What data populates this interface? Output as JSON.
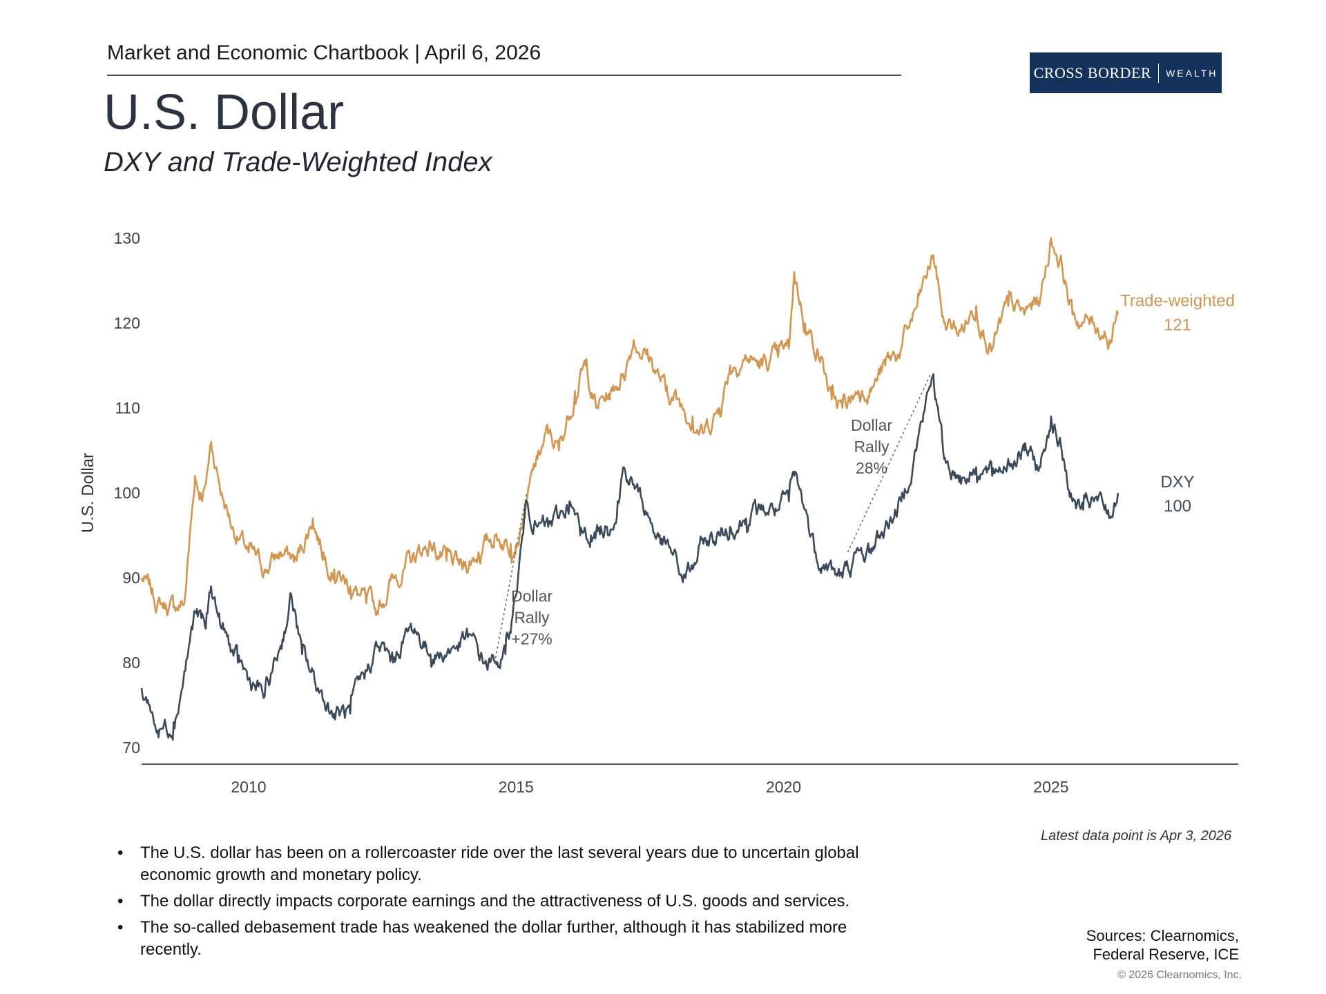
{
  "header": {
    "chartbook": "Market and Economic Chartbook | April 6, 2026",
    "logo_main": "CROSS BORDER",
    "logo_sub": "WEALTH",
    "title": "U.S. Dollar",
    "subtitle": "DXY and Trade-Weighted Index"
  },
  "chart_data": {
    "type": "line",
    "title": "U.S. Dollar",
    "subtitle": "DXY and Trade-Weighted Index",
    "ylabel": "U.S. Dollar",
    "xlabel": "",
    "xlim": [
      2008.0,
      2028.5
    ],
    "ylim": [
      70,
      130
    ],
    "x_ticks": [
      2010,
      2015,
      2020,
      2025
    ],
    "x_tick_labels": [
      "2010",
      "2015",
      "2020",
      "2025"
    ],
    "y_ticks": [
      70,
      80,
      90,
      100,
      110,
      120,
      130
    ],
    "y_tick_labels": [
      "70",
      "80",
      "90",
      "100",
      "110",
      "120",
      "130"
    ],
    "grid": false,
    "series": [
      {
        "name": "Trade-weighted",
        "color": "#d4954f",
        "end_label": "Trade-weighted",
        "end_value_label": "121",
        "points": [
          [
            2008.0,
            90
          ],
          [
            2008.3,
            87
          ],
          [
            2008.6,
            86.5
          ],
          [
            2008.8,
            87
          ],
          [
            2009.0,
            102
          ],
          [
            2009.1,
            100
          ],
          [
            2009.2,
            101
          ],
          [
            2009.3,
            106
          ],
          [
            2009.5,
            100
          ],
          [
            2009.7,
            96
          ],
          [
            2010.0,
            93
          ],
          [
            2010.3,
            91
          ],
          [
            2010.6,
            93
          ],
          [
            2010.9,
            92
          ],
          [
            2011.2,
            97
          ],
          [
            2011.4,
            93
          ],
          [
            2011.6,
            91
          ],
          [
            2011.9,
            89
          ],
          [
            2012.2,
            87
          ],
          [
            2012.4,
            86
          ],
          [
            2012.7,
            90
          ],
          [
            2012.9,
            91
          ],
          [
            2013.2,
            93
          ],
          [
            2013.4,
            94
          ],
          [
            2013.7,
            92
          ],
          [
            2014.0,
            91
          ],
          [
            2014.3,
            93
          ],
          [
            2014.6,
            95
          ],
          [
            2014.9,
            94
          ],
          [
            2015.1,
            96
          ],
          [
            2015.2,
            99
          ],
          [
            2015.4,
            104
          ],
          [
            2015.6,
            107
          ],
          [
            2015.8,
            105
          ],
          [
            2016.1,
            112
          ],
          [
            2016.3,
            115
          ],
          [
            2016.5,
            110
          ],
          [
            2016.8,
            112
          ],
          [
            2017.0,
            114
          ],
          [
            2017.2,
            118
          ],
          [
            2017.5,
            116
          ],
          [
            2017.8,
            112
          ],
          [
            2018.0,
            111
          ],
          [
            2018.3,
            109
          ],
          [
            2018.5,
            107
          ],
          [
            2018.8,
            110
          ],
          [
            2019.0,
            115
          ],
          [
            2019.3,
            116
          ],
          [
            2019.6,
            115
          ],
          [
            2019.9,
            116
          ],
          [
            2020.1,
            117
          ],
          [
            2020.2,
            126
          ],
          [
            2020.4,
            120
          ],
          [
            2020.7,
            116
          ],
          [
            2020.9,
            111
          ],
          [
            2021.1,
            110
          ],
          [
            2021.4,
            112
          ],
          [
            2021.7,
            113
          ],
          [
            2021.9,
            115
          ],
          [
            2022.2,
            117
          ],
          [
            2022.5,
            122
          ],
          [
            2022.8,
            128
          ],
          [
            2023.0,
            120
          ],
          [
            2023.3,
            119
          ],
          [
            2023.6,
            122
          ],
          [
            2023.9,
            117
          ],
          [
            2024.2,
            122
          ],
          [
            2024.5,
            121
          ],
          [
            2024.8,
            123
          ],
          [
            2025.0,
            130
          ],
          [
            2025.2,
            127
          ],
          [
            2025.4,
            121
          ],
          [
            2025.6,
            120
          ],
          [
            2025.8,
            120
          ],
          [
            2026.0,
            119
          ],
          [
            2026.1,
            118
          ],
          [
            2026.25,
            121
          ]
        ]
      },
      {
        "name": "DXY",
        "color": "#3a4a5a",
        "end_label": "DXY",
        "end_value_label": "100",
        "points": [
          [
            2008.0,
            77
          ],
          [
            2008.15,
            75
          ],
          [
            2008.3,
            72
          ],
          [
            2008.6,
            73
          ],
          [
            2008.8,
            79
          ],
          [
            2009.0,
            86
          ],
          [
            2009.2,
            84
          ],
          [
            2009.3,
            89
          ],
          [
            2009.5,
            84
          ],
          [
            2009.8,
            80
          ],
          [
            2010.0,
            78
          ],
          [
            2010.3,
            76
          ],
          [
            2010.6,
            82
          ],
          [
            2010.8,
            88
          ],
          [
            2011.0,
            81
          ],
          [
            2011.3,
            77
          ],
          [
            2011.6,
            74
          ],
          [
            2011.9,
            74
          ],
          [
            2012.2,
            79
          ],
          [
            2012.4,
            82
          ],
          [
            2012.7,
            80
          ],
          [
            2012.9,
            83
          ],
          [
            2013.1,
            84
          ],
          [
            2013.4,
            81
          ],
          [
            2013.6,
            81
          ],
          [
            2013.9,
            82
          ],
          [
            2014.1,
            83
          ],
          [
            2014.4,
            80
          ],
          [
            2014.6,
            80
          ],
          [
            2014.8,
            81
          ],
          [
            2015.0,
            88
          ],
          [
            2015.2,
            99
          ],
          [
            2015.4,
            96
          ],
          [
            2015.6,
            96
          ],
          [
            2015.8,
            97
          ],
          [
            2016.0,
            99
          ],
          [
            2016.2,
            95
          ],
          [
            2016.4,
            95
          ],
          [
            2016.7,
            96
          ],
          [
            2016.9,
            99
          ],
          [
            2017.0,
            103
          ],
          [
            2017.2,
            101
          ],
          [
            2017.5,
            97
          ],
          [
            2017.7,
            94
          ],
          [
            2017.9,
            93
          ],
          [
            2018.1,
            90
          ],
          [
            2018.3,
            91
          ],
          [
            2018.5,
            94
          ],
          [
            2018.8,
            95
          ],
          [
            2019.0,
            96
          ],
          [
            2019.3,
            97
          ],
          [
            2019.6,
            98
          ],
          [
            2019.9,
            98
          ],
          [
            2020.1,
            99
          ],
          [
            2020.2,
            102
          ],
          [
            2020.4,
            98
          ],
          [
            2020.6,
            93
          ],
          [
            2020.9,
            91
          ],
          [
            2021.1,
            90
          ],
          [
            2021.3,
            92
          ],
          [
            2021.6,
            93
          ],
          [
            2021.9,
            96
          ],
          [
            2022.2,
            99
          ],
          [
            2022.5,
            106
          ],
          [
            2022.8,
            114
          ],
          [
            2023.0,
            104
          ],
          [
            2023.3,
            102
          ],
          [
            2023.6,
            103
          ],
          [
            2023.9,
            102
          ],
          [
            2024.2,
            104
          ],
          [
            2024.5,
            105
          ],
          [
            2024.8,
            103
          ],
          [
            2025.0,
            109
          ],
          [
            2025.2,
            105
          ],
          [
            2025.4,
            99
          ],
          [
            2025.6,
            98
          ],
          [
            2025.8,
            99
          ],
          [
            2026.0,
            98
          ],
          [
            2026.1,
            97
          ],
          [
            2026.25,
            100
          ]
        ]
      }
    ],
    "annotations": [
      {
        "text_lines": [
          "Dollar",
          "Rally",
          "+27%"
        ],
        "from": [
          2014.6,
          80
        ],
        "to": [
          2015.2,
          100
        ]
      },
      {
        "text_lines": [
          "Dollar",
          "Rally",
          "28%"
        ],
        "from": [
          2021.2,
          93
        ],
        "to": [
          2022.75,
          114
        ]
      }
    ]
  },
  "footer": {
    "latest_note": "Latest data point is Apr 3, 2026",
    "bullets": [
      "The U.S. dollar has been on a rollercoaster ride over the last several years due to uncertain global economic growth and monetary policy.",
      "The dollar directly impacts corporate earnings and the attractiveness of U.S. goods and services.",
      "The so-called debasement trade has weakened the dollar further, although it has stabilized more recently."
    ],
    "sources_line1": "Sources: Clearnomics,",
    "sources_line2": "Federal Reserve, ICE",
    "copyright": "© 2026 Clearnomics, Inc."
  }
}
